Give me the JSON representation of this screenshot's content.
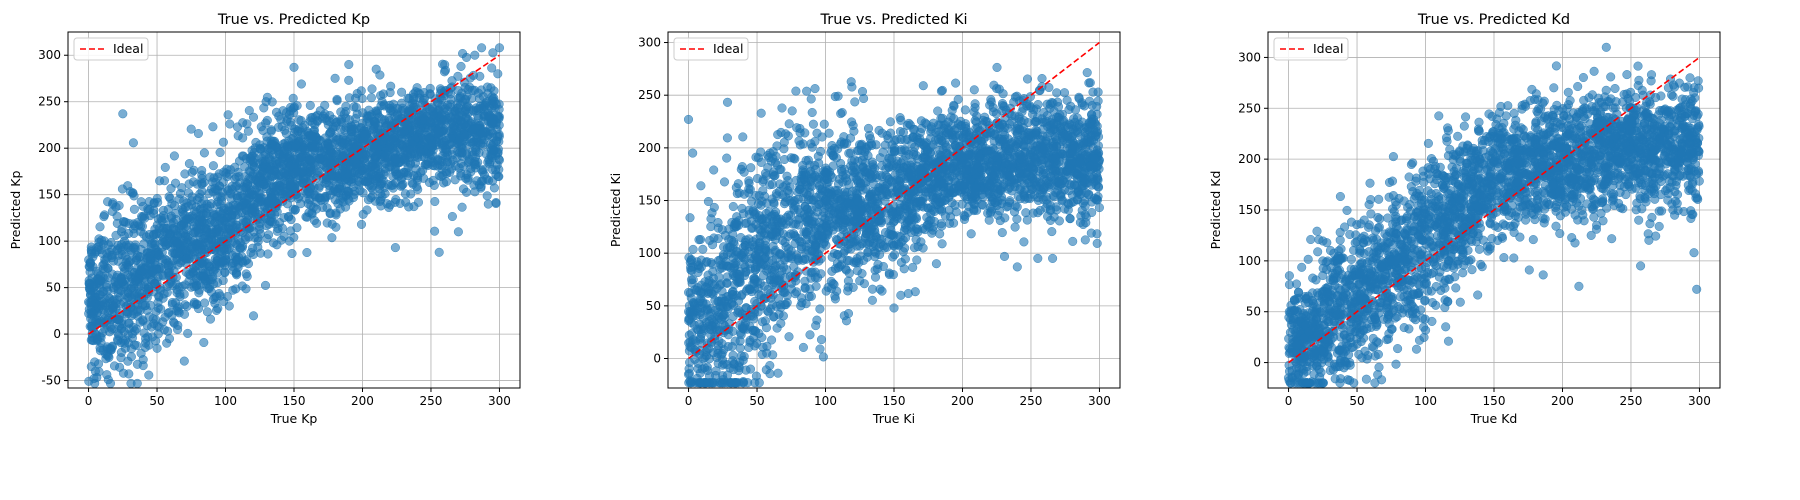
{
  "chart_data": [
    {
      "type": "scatter",
      "title": "True vs. Predicted Kp",
      "xlabel": "True Kp",
      "ylabel": "Predicted Kp",
      "xlim": [
        -15,
        315
      ],
      "ylim": [
        -58,
        325
      ],
      "xticks": [
        0,
        50,
        100,
        150,
        200,
        250,
        300
      ],
      "yticks": [
        -50,
        0,
        50,
        100,
        150,
        200,
        250,
        300
      ],
      "grid": true,
      "legend": {
        "placement": "upper-left",
        "entries": [
          "Ideal"
        ]
      },
      "ideal_line": {
        "name": "Ideal",
        "x": [
          0,
          300
        ],
        "y": [
          0,
          300
        ],
        "color": "#ff0000",
        "style": "dashed"
      },
      "point_color": "#1f77b4",
      "point_alpha": 0.6,
      "n_points": 3000,
      "series": [
        {
          "band_x_centers": [
            10,
            30,
            50,
            70,
            90,
            110,
            130,
            150,
            170,
            190,
            210,
            230,
            250,
            270,
            290
          ],
          "band_y_means": [
            40,
            55,
            75,
            90,
            105,
            125,
            165,
            180,
            185,
            190,
            195,
            205,
            215,
            220,
            220
          ],
          "band_y_spread": [
            40,
            45,
            45,
            40,
            40,
            40,
            35,
            35,
            30,
            30,
            28,
            30,
            30,
            30,
            32
          ],
          "outliers": [
            [
              2,
              -35
            ],
            [
              5,
              -40
            ],
            [
              44,
              -12
            ],
            [
              25,
              237
            ],
            [
              150,
              287
            ],
            [
              190,
              290
            ],
            [
              210,
              285
            ],
            [
              287,
              308
            ],
            [
              300,
              308
            ],
            [
              282,
              300
            ],
            [
              256,
              88
            ],
            [
              224,
              93
            ],
            [
              270,
              110
            ]
          ]
        }
      ]
    },
    {
      "type": "scatter",
      "title": "True vs. Predicted Ki",
      "xlabel": "True Ki",
      "ylabel": "Predicted Ki",
      "xlim": [
        -15,
        315
      ],
      "ylim": [
        -28,
        310
      ],
      "xticks": [
        0,
        50,
        100,
        150,
        200,
        250,
        300
      ],
      "yticks": [
        0,
        50,
        100,
        150,
        200,
        250,
        300
      ],
      "grid": true,
      "legend": {
        "placement": "upper-left",
        "entries": [
          "Ideal"
        ]
      },
      "ideal_line": {
        "name": "Ideal",
        "x": [
          0,
          300
        ],
        "y": [
          0,
          300
        ],
        "color": "#ff0000",
        "style": "dashed"
      },
      "point_color": "#1f77b4",
      "point_alpha": 0.6,
      "n_points": 3000,
      "series": [
        {
          "band_x_centers": [
            10,
            30,
            50,
            70,
            90,
            110,
            130,
            150,
            170,
            190,
            210,
            230,
            250,
            270,
            290
          ],
          "band_y_means": [
            40,
            60,
            90,
            115,
            135,
            140,
            145,
            150,
            165,
            180,
            185,
            190,
            190,
            190,
            190
          ],
          "band_y_spread": [
            50,
            55,
            55,
            50,
            45,
            40,
            38,
            35,
            32,
            30,
            30,
            30,
            30,
            30,
            30
          ],
          "outliers": [
            [
              0,
              -15
            ],
            [
              10,
              -10
            ],
            [
              0,
              227
            ],
            [
              3,
              195
            ],
            [
              258,
              258
            ],
            [
              285,
              248
            ],
            [
              240,
              87
            ],
            [
              150,
              48
            ],
            [
              155,
              60
            ],
            [
              255,
              95
            ]
          ]
        }
      ]
    },
    {
      "type": "scatter",
      "title": "True vs. Predicted Kd",
      "xlabel": "True Kd",
      "ylabel": "Predicted Kd",
      "xlim": [
        -15,
        315
      ],
      "ylim": [
        -25,
        325
      ],
      "xticks": [
        0,
        50,
        100,
        150,
        200,
        250,
        300
      ],
      "yticks": [
        0,
        50,
        100,
        150,
        200,
        250,
        300
      ],
      "grid": true,
      "legend": {
        "placement": "upper-left",
        "entries": [
          "Ideal"
        ]
      },
      "ideal_line": {
        "name": "Ideal",
        "x": [
          0,
          300
        ],
        "y": [
          0,
          300
        ],
        "color": "#ff0000",
        "style": "dashed"
      },
      "point_color": "#1f77b4",
      "point_alpha": 0.6,
      "n_points": 3000,
      "series": [
        {
          "band_x_centers": [
            10,
            30,
            50,
            70,
            90,
            110,
            130,
            150,
            170,
            190,
            210,
            230,
            250,
            270,
            290
          ],
          "band_y_means": [
            25,
            45,
            65,
            85,
            110,
            135,
            160,
            180,
            190,
            195,
            200,
            205,
            210,
            210,
            215
          ],
          "band_y_spread": [
            30,
            35,
            40,
            40,
            40,
            38,
            35,
            32,
            30,
            30,
            30,
            30,
            30,
            30,
            30
          ],
          "outliers": [
            [
              0,
              -15
            ],
            [
              5,
              -12
            ],
            [
              232,
              310
            ],
            [
              265,
              283
            ],
            [
              298,
              72
            ],
            [
              296,
              108
            ],
            [
              212,
              75
            ],
            [
              257,
              95
            ]
          ]
        }
      ]
    }
  ]
}
